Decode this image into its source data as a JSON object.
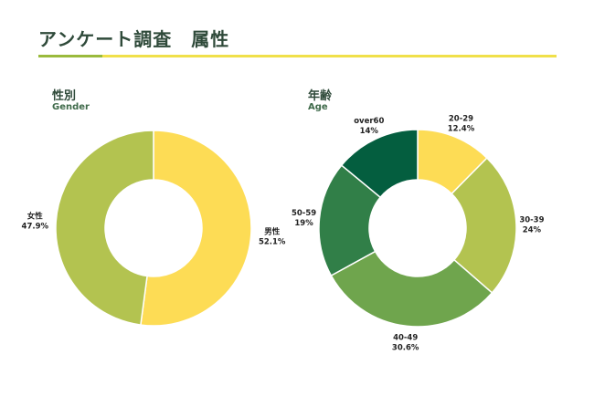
{
  "header": {
    "title": "アンケート調査　属性"
  },
  "chart_data": [
    {
      "type": "pie",
      "title": "性別",
      "subtitle": "Gender",
      "donut": true,
      "categories": [
        "男性",
        "女性"
      ],
      "values": [
        52.1,
        47.9
      ],
      "value_labels": [
        "52.1%",
        "47.9%"
      ],
      "colors": [
        "#fddc55",
        "#b3c350"
      ],
      "start": "12 o'clock",
      "direction": "clockwise"
    },
    {
      "type": "pie",
      "title": "年齢",
      "subtitle": "Age",
      "donut": true,
      "categories": [
        "20-29",
        "30-39",
        "40-49",
        "50-59",
        "over60"
      ],
      "values": [
        12.4,
        24,
        30.6,
        19,
        14
      ],
      "value_labels": [
        "12.4%",
        "24%",
        "30.6%",
        "19%",
        "14%"
      ],
      "colors": [
        "#fddc55",
        "#b3c350",
        "#6fa54d",
        "#317f48",
        "#045e3f"
      ],
      "start": "12 o'clock",
      "direction": "clockwise"
    }
  ]
}
